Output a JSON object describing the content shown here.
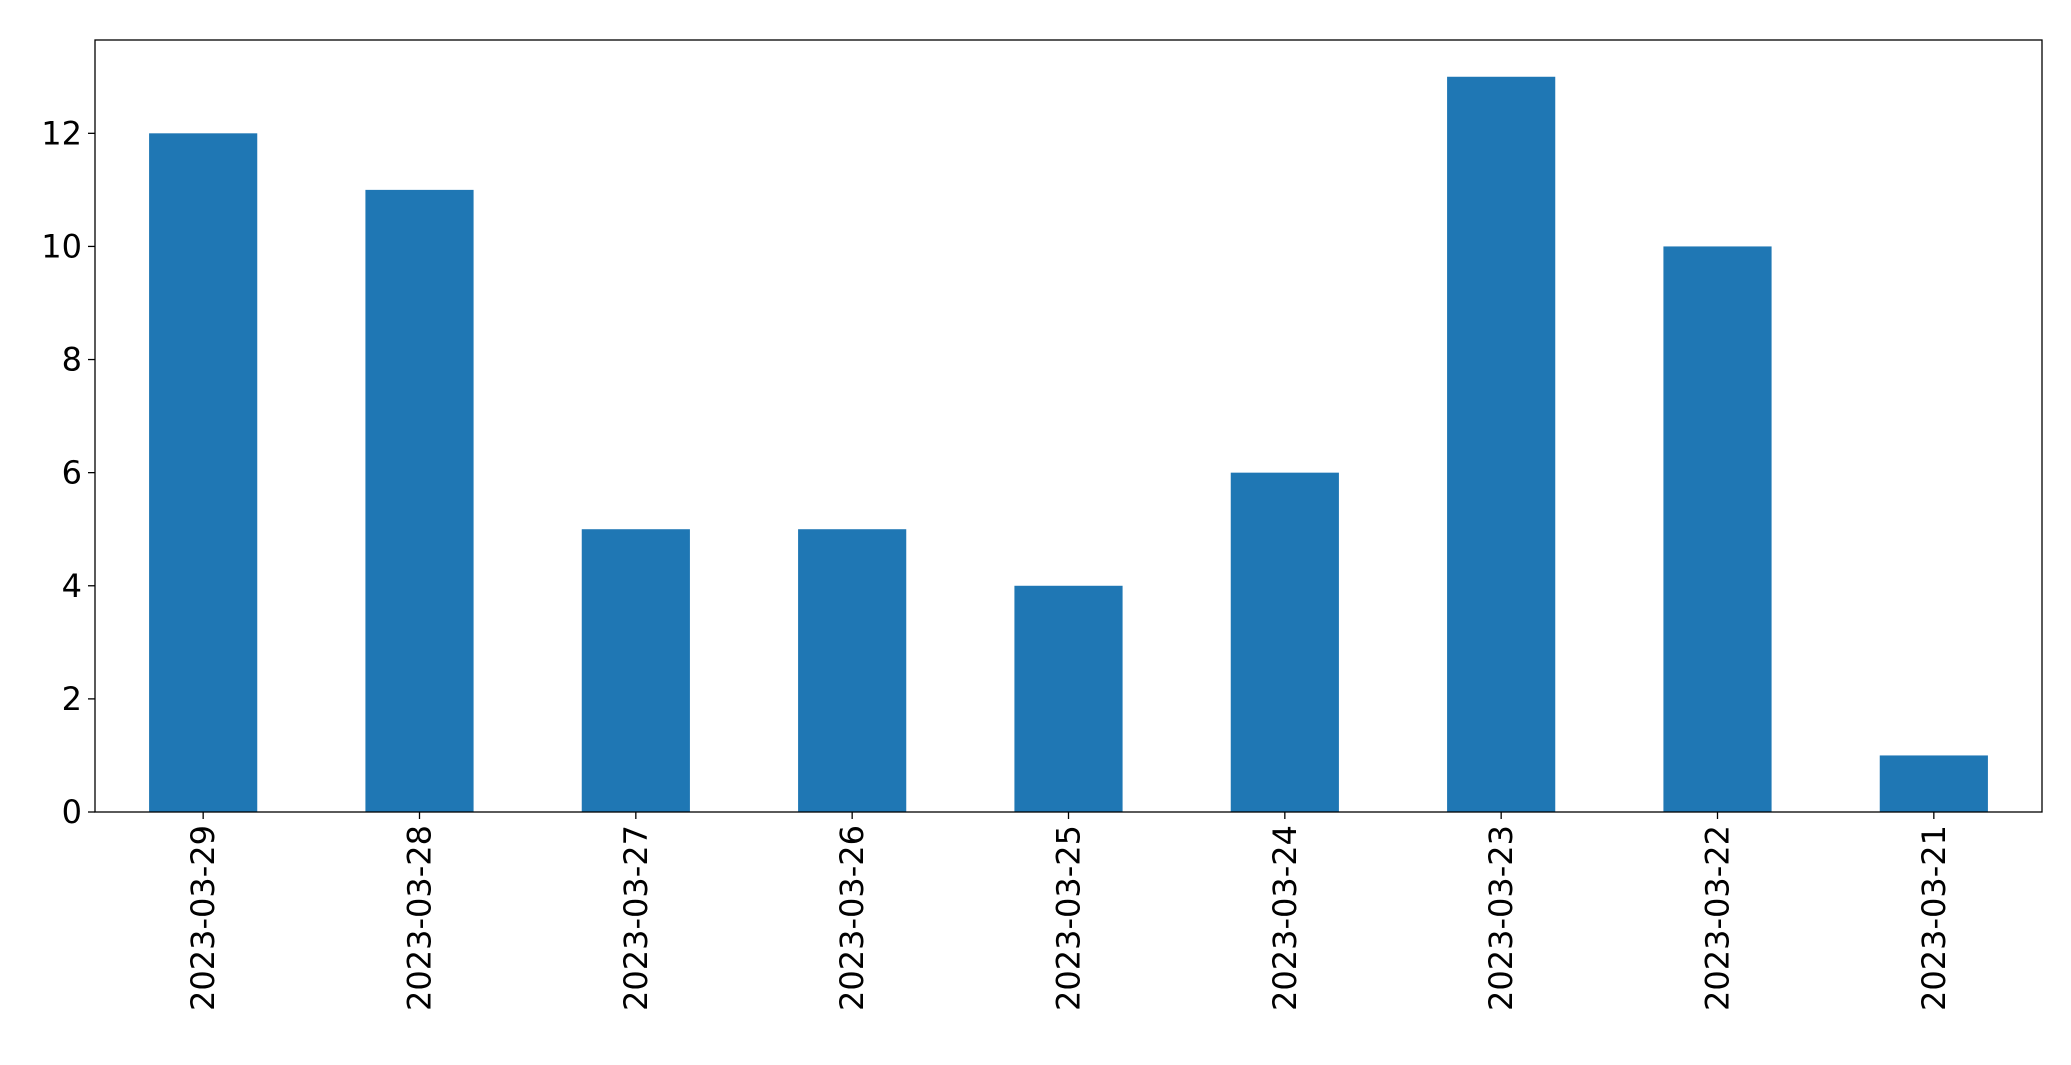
{
  "chart_data": {
    "type": "bar",
    "title": "",
    "xlabel": "",
    "ylabel": "",
    "categories": [
      "2023-03-29",
      "2023-03-28",
      "2023-03-27",
      "2023-03-26",
      "2023-03-25",
      "2023-03-24",
      "2023-03-23",
      "2023-03-22",
      "2023-03-21"
    ],
    "values": [
      12,
      11,
      5,
      5,
      4,
      6,
      13,
      10,
      1
    ],
    "ylim": [
      0,
      13.65
    ],
    "yticks": [
      0,
      2,
      4,
      6,
      8,
      10,
      12
    ],
    "bar_color": "#1f77b4",
    "grid": false,
    "legend": "none"
  }
}
